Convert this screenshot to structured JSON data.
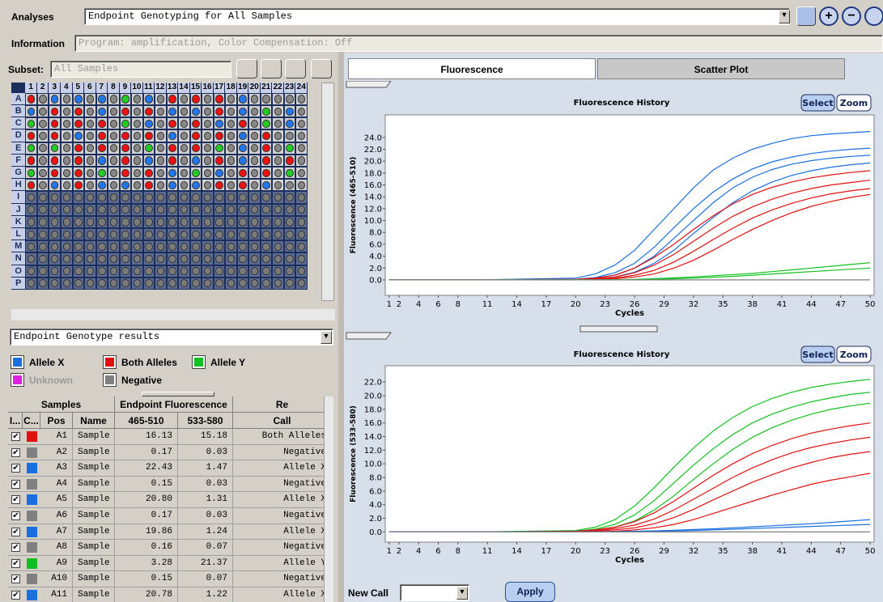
{
  "toolbar": {
    "analyses_label": "Analyses",
    "analyses_value": "Endpoint Genotyping for All Samples",
    "information_label": "Information",
    "information_value": "Program: amplification, Color Compensation: Off"
  },
  "subset": {
    "label": "Subset:",
    "value": "All Samples"
  },
  "plate": {
    "columns": [
      1,
      2,
      3,
      4,
      5,
      6,
      7,
      8,
      9,
      10,
      11,
      12,
      13,
      14,
      15,
      16,
      17,
      18,
      19,
      20,
      21,
      22,
      23,
      24
    ],
    "rows": [
      "A",
      "B",
      "C",
      "D",
      "E",
      "F",
      "G",
      "H",
      "I",
      "J",
      "K",
      "L",
      "M",
      "N",
      "O",
      "P"
    ],
    "wells": [
      [
        "#e11",
        "#888",
        "#27e",
        "#888",
        "#27e",
        "#888",
        "#27e",
        "#888",
        "#2c2",
        "#888",
        "#27e",
        "#888",
        "#e11",
        "#888",
        "#e11",
        "#888",
        "#e11",
        "#888",
        "#27e",
        "#888",
        "#888",
        "#888",
        "#888",
        "#888"
      ],
      [
        "#27e",
        "#888",
        "#e11",
        "#888",
        "#e11",
        "#888",
        "#27e",
        "#888",
        "#e11",
        "#888",
        "#e11",
        "#888",
        "#27e",
        "#888",
        "#27e",
        "#888",
        "#e11",
        "#888",
        "#27e",
        "#888",
        "#2c2",
        "#888",
        "#27e",
        "#888"
      ],
      [
        "#2c2",
        "#888",
        "#e11",
        "#888",
        "#e11",
        "#888",
        "#e11",
        "#888",
        "#2c2",
        "#888",
        "#27e",
        "#888",
        "#e11",
        "#888",
        "#e11",
        "#888",
        "#27e",
        "#888",
        "#e11",
        "#888",
        "#2c2",
        "#888",
        "#27e",
        "#888"
      ],
      [
        "#e11",
        "#888",
        "#e11",
        "#888",
        "#27e",
        "#888",
        "#e11",
        "#888",
        "#e11",
        "#888",
        "#e11",
        "#888",
        "#27e",
        "#888",
        "#e11",
        "#888",
        "#e11",
        "#888",
        "#27e",
        "#888",
        "#e11",
        "#888",
        "#888",
        "#888"
      ],
      [
        "#2c2",
        "#888",
        "#2c2",
        "#888",
        "#e11",
        "#888",
        "#e11",
        "#888",
        "#e11",
        "#888",
        "#2c2",
        "#888",
        "#e11",
        "#888",
        "#e11",
        "#888",
        "#2c2",
        "#888",
        "#27e",
        "#888",
        "#e11",
        "#888",
        "#2c2",
        "#888"
      ],
      [
        "#e11",
        "#888",
        "#e11",
        "#888",
        "#e11",
        "#888",
        "#27e",
        "#888",
        "#e11",
        "#888",
        "#27e",
        "#888",
        "#e11",
        "#888",
        "#27e",
        "#888",
        "#e11",
        "#888",
        "#27e",
        "#888",
        "#e11",
        "#888",
        "#e11",
        "#888"
      ],
      [
        "#2c2",
        "#888",
        "#e11",
        "#888",
        "#e11",
        "#888",
        "#2c2",
        "#888",
        "#e11",
        "#888",
        "#e11",
        "#888",
        "#27e",
        "#888",
        "#2c2",
        "#888",
        "#27e",
        "#888",
        "#e11",
        "#888",
        "#e11",
        "#888",
        "#2c2",
        "#888"
      ],
      [
        "#e11",
        "#888",
        "#27e",
        "#888",
        "#e11",
        "#888",
        "#27e",
        "#888",
        "#27e",
        "#888",
        "#e11",
        "#888",
        "#27e",
        "#888",
        "#27e",
        "#888",
        "#e11",
        "#888",
        "#e11",
        "#888",
        "#27e",
        "#888",
        "#888",
        "#888"
      ]
    ]
  },
  "results_dropdown": "Endpoint Genotype results",
  "legend": [
    {
      "label": "Allele X",
      "color": "#1a6fe0",
      "enabled": true
    },
    {
      "label": "Both Alleles",
      "color": "#e01010",
      "enabled": true
    },
    {
      "label": "Allele Y",
      "color": "#10c020",
      "enabled": true
    },
    {
      "label": "Unknown",
      "color": "#e020e0",
      "enabled": false
    },
    {
      "label": "Negative",
      "color": "#808080",
      "enabled": true
    }
  ],
  "table": {
    "group_headers": [
      "Samples",
      "Endpoint Fluorescence",
      "Re"
    ],
    "headers": [
      "I...",
      "C...",
      "Pos",
      "Name",
      "465-510",
      "533-580",
      "Call"
    ],
    "rows": [
      [
        "A1",
        "Sample",
        "16.13",
        "15.18",
        "Both Alleles"
      ],
      [
        "A2",
        "Sample",
        "0.17",
        "0.03",
        "Negative"
      ],
      [
        "A3",
        "Sample",
        "22.43",
        "1.47",
        "Allele X"
      ],
      [
        "A4",
        "Sample",
        "0.15",
        "0.03",
        "Negative"
      ],
      [
        "A5",
        "Sample",
        "20.80",
        "1.31",
        "Allele X"
      ],
      [
        "A6",
        "Sample",
        "0.17",
        "0.03",
        "Negative"
      ],
      [
        "A7",
        "Sample",
        "19.86",
        "1.24",
        "Allele X"
      ],
      [
        "A8",
        "Sample",
        "0.16",
        "0.07",
        "Negative"
      ],
      [
        "A9",
        "Sample",
        "3.28",
        "21.37",
        "Allele Y"
      ],
      [
        "A10",
        "Sample",
        "0.15",
        "0.07",
        "Negative"
      ],
      [
        "A11",
        "Sample",
        "20.78",
        "1.22",
        "Allele X"
      ]
    ],
    "row_colors": [
      "#e01010",
      "#808080",
      "#1a6fe0",
      "#808080",
      "#1a6fe0",
      "#808080",
      "#1a6fe0",
      "#808080",
      "#10c020",
      "#808080",
      "#1a6fe0"
    ]
  },
  "tabs": [
    "Fluorescence",
    "Scatter Plot"
  ],
  "new_call": {
    "label": "New Call",
    "button": "Apply"
  },
  "chart_data": [
    {
      "type": "line",
      "title": "Fluorescence History",
      "buttons": [
        "Select",
        "Zoom"
      ],
      "xlabel": "Cycles",
      "ylabel": "Fluorescence (465-510)",
      "x": [
        1,
        10,
        20,
        22,
        24,
        26,
        28,
        30,
        32,
        34,
        36,
        38,
        40,
        42,
        44,
        46,
        48,
        50
      ],
      "xlim": [
        0.6,
        50.4
      ],
      "xticks": [
        1,
        2,
        4,
        6,
        8,
        11,
        14,
        17,
        20,
        23,
        26,
        29,
        32,
        35,
        38,
        41,
        44,
        47,
        50
      ],
      "ylim": [
        -2.6,
        27.8
      ],
      "yticks": [
        {
          "value": 0,
          "label": "0.0"
        },
        {
          "value": 2,
          "label": "2.0"
        },
        {
          "value": 4,
          "label": "4.0"
        },
        {
          "value": 6,
          "label": "6.0"
        },
        {
          "value": 8,
          "label": "8.0"
        },
        {
          "value": 10,
          "label": "10.0"
        },
        {
          "value": 12,
          "label": "12.0"
        },
        {
          "value": 14,
          "label": "14.0"
        },
        {
          "value": 16,
          "label": "16.0"
        },
        {
          "value": 18,
          "label": "18.0"
        },
        {
          "value": 20,
          "label": "20.0"
        },
        {
          "value": 22,
          "label": "22.0"
        },
        {
          "value": 24,
          "label": "24.0"
        }
      ],
      "series": [
        {
          "color": "#1a6fe0",
          "values": [
            0,
            0,
            0.3,
            1.0,
            2.5,
            5,
            8.5,
            12,
            15.5,
            18.5,
            20.5,
            22,
            23,
            23.8,
            24.3,
            24.6,
            24.8,
            25
          ]
        },
        {
          "color": "#1a6fe0",
          "values": [
            0,
            0,
            0.1,
            0.4,
            1.2,
            2.8,
            5.5,
            8.8,
            12,
            14.8,
            17,
            18.7,
            19.9,
            20.7,
            21.3,
            21.7,
            22,
            22.2
          ]
        },
        {
          "color": "#1a6fe0",
          "values": [
            0,
            0,
            0.1,
            0.3,
            0.8,
            2,
            4,
            7,
            10,
            13,
            15.5,
            17.3,
            18.6,
            19.5,
            20.1,
            20.5,
            20.8,
            21
          ]
        },
        {
          "color": "#1a6fe0",
          "values": [
            0,
            0,
            0,
            0.2,
            0.5,
            1.3,
            2.8,
            5,
            7.8,
            10.5,
            13,
            15,
            16.5,
            17.6,
            18.4,
            19,
            19.4,
            19.7
          ]
        },
        {
          "color": "#e01010",
          "values": [
            0,
            0,
            0.1,
            0.3,
            0.8,
            2,
            3.8,
            6,
            8.5,
            10.8,
            12.8,
            14.4,
            15.6,
            16.5,
            17.2,
            17.7,
            18.1,
            18.4
          ]
        },
        {
          "color": "#e01010",
          "values": [
            0,
            0,
            0,
            0.2,
            0.5,
            1.2,
            2.5,
            4.3,
            6.5,
            8.7,
            10.7,
            12.3,
            13.6,
            14.6,
            15.4,
            16,
            16.4,
            16.8
          ]
        },
        {
          "color": "#e01010",
          "values": [
            0,
            0,
            0,
            0.1,
            0.3,
            0.8,
            1.6,
            3,
            4.8,
            6.8,
            8.7,
            10.4,
            11.8,
            12.9,
            13.8,
            14.5,
            15,
            15.4
          ]
        },
        {
          "color": "#e01010",
          "values": [
            0,
            0,
            0,
            0.1,
            0.2,
            0.5,
            1,
            2,
            3.3,
            5,
            6.8,
            8.5,
            10,
            11.3,
            12.4,
            13.2,
            13.9,
            14.4
          ]
        },
        {
          "color": "#10c020",
          "values": [
            0,
            0,
            0,
            0,
            0.05,
            0.1,
            0.2,
            0.35,
            0.5,
            0.7,
            0.9,
            1.1,
            1.4,
            1.7,
            2,
            2.3,
            2.6,
            2.9
          ]
        },
        {
          "color": "#10c020",
          "values": [
            0,
            0,
            0,
            0,
            0,
            0.05,
            0.1,
            0.2,
            0.3,
            0.45,
            0.6,
            0.8,
            1,
            1.2,
            1.4,
            1.6,
            1.8,
            2
          ]
        },
        {
          "color": "#808080",
          "values": [
            0,
            0,
            0,
            0,
            0,
            0,
            0,
            0,
            0,
            0,
            0,
            0,
            0,
            0,
            0,
            0,
            0,
            0
          ]
        }
      ]
    },
    {
      "type": "line",
      "title": "Fluorescence History",
      "buttons": [
        "Select",
        "Zoom"
      ],
      "xlabel": "Cycles",
      "ylabel": "Fluorescence (533-580)",
      "x": [
        1,
        10,
        20,
        22,
        24,
        26,
        28,
        30,
        32,
        34,
        36,
        38,
        40,
        42,
        44,
        46,
        48,
        50
      ],
      "xlim": [
        0.6,
        50.4
      ],
      "xticks": [
        1,
        2,
        4,
        6,
        8,
        11,
        14,
        17,
        20,
        23,
        26,
        29,
        32,
        35,
        38,
        41,
        44,
        47,
        50
      ],
      "ylim": [
        -1.5,
        24.4
      ],
      "yticks": [
        {
          "value": 0,
          "label": "0.0"
        },
        {
          "value": 2,
          "label": "2.0"
        },
        {
          "value": 4,
          "label": "4.0"
        },
        {
          "value": 6,
          "label": "6.0"
        },
        {
          "value": 8,
          "label": "8.0"
        },
        {
          "value": 10,
          "label": "10.0"
        },
        {
          "value": 12,
          "label": "12.0"
        },
        {
          "value": 14,
          "label": "14.0"
        },
        {
          "value": 16,
          "label": "16.0"
        },
        {
          "value": 18,
          "label": "18.0"
        },
        {
          "value": 20,
          "label": "20.0"
        },
        {
          "value": 22,
          "label": "22.0"
        }
      ],
      "series": [
        {
          "color": "#10c020",
          "values": [
            0,
            0,
            0.2,
            0.7,
            1.8,
            3.8,
            6.5,
            9.5,
            12.3,
            14.8,
            16.8,
            18.4,
            19.6,
            20.5,
            21.2,
            21.7,
            22.1,
            22.4
          ]
        },
        {
          "color": "#10c020",
          "values": [
            0,
            0,
            0.1,
            0.4,
            1.1,
            2.5,
            4.6,
            7.2,
            9.8,
            12.2,
            14.3,
            16,
            17.3,
            18.3,
            19.1,
            19.7,
            20.2,
            20.5
          ]
        },
        {
          "color": "#10c020",
          "values": [
            0,
            0,
            0.1,
            0.3,
            0.7,
            1.6,
            3.2,
            5.3,
            7.7,
            10,
            12.1,
            13.9,
            15.3,
            16.4,
            17.3,
            18,
            18.5,
            18.9
          ]
        },
        {
          "color": "#e01010",
          "values": [
            0,
            0,
            0.1,
            0.3,
            0.7,
            1.5,
            2.8,
            4.5,
            6.4,
            8.3,
            10,
            11.5,
            12.7,
            13.7,
            14.5,
            15.1,
            15.6,
            16
          ]
        },
        {
          "color": "#e01010",
          "values": [
            0,
            0,
            0,
            0.2,
            0.5,
            1,
            1.9,
            3.2,
            4.8,
            6.4,
            8,
            9.4,
            10.6,
            11.6,
            12.4,
            13,
            13.5,
            13.9
          ]
        },
        {
          "color": "#e01010",
          "values": [
            0,
            0,
            0,
            0.1,
            0.3,
            0.6,
            1.2,
            2.1,
            3.3,
            4.7,
            6,
            7.3,
            8.4,
            9.4,
            10.2,
            10.9,
            11.4,
            11.8
          ]
        },
        {
          "color": "#e01010",
          "values": [
            0,
            0,
            0,
            0,
            0.1,
            0.3,
            0.6,
            1.1,
            1.8,
            2.7,
            3.6,
            4.5,
            5.4,
            6.2,
            7,
            7.6,
            8.1,
            8.6
          ]
        },
        {
          "color": "#1a6fe0",
          "values": [
            0,
            0,
            0,
            0,
            0.05,
            0.1,
            0.15,
            0.25,
            0.35,
            0.45,
            0.6,
            0.75,
            0.9,
            1.05,
            1.2,
            1.4,
            1.6,
            1.8
          ]
        },
        {
          "color": "#1a6fe0",
          "values": [
            0,
            0,
            0,
            0,
            0,
            0.05,
            0.1,
            0.15,
            0.2,
            0.3,
            0.4,
            0.5,
            0.6,
            0.7,
            0.8,
            0.9,
            1,
            1.1
          ]
        },
        {
          "color": "#808080",
          "values": [
            0,
            0,
            0,
            0,
            0,
            0,
            0,
            0,
            0,
            0,
            0,
            0,
            0,
            0,
            0,
            0,
            0,
            0
          ]
        }
      ]
    }
  ]
}
